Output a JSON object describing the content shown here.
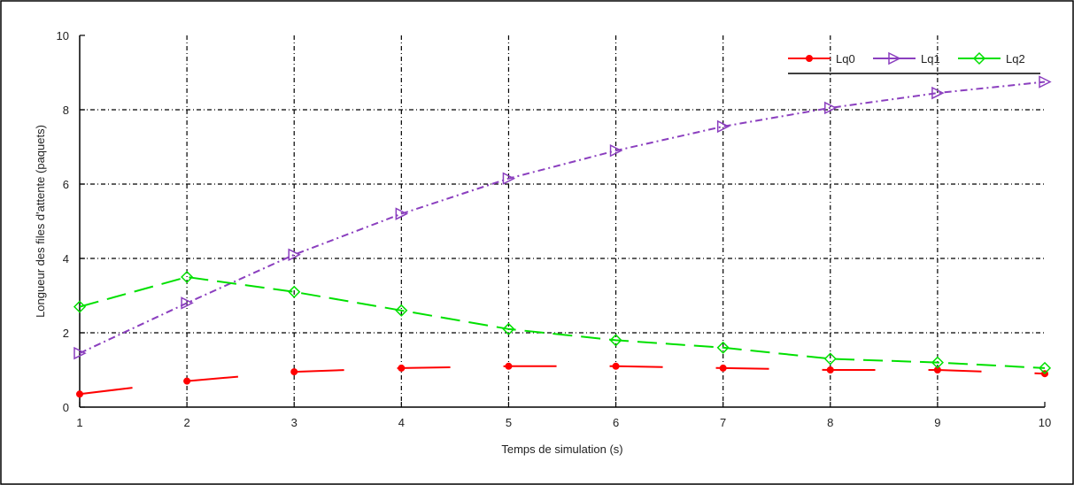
{
  "chart_data": {
    "type": "line",
    "xlabel": "Temps de simulation (s)",
    "ylabel": "Longueur des files d'attente (paquets)",
    "x": [
      1,
      2,
      3,
      4,
      5,
      6,
      7,
      8,
      9,
      10
    ],
    "xlim": [
      1,
      10
    ],
    "ylim": [
      0,
      10
    ],
    "xticks": [
      1,
      2,
      3,
      4,
      5,
      6,
      7,
      8,
      9,
      10
    ],
    "yticks": [
      0,
      2,
      4,
      6,
      8,
      10
    ],
    "grid": true,
    "legend_position": "top-right",
    "series": [
      {
        "name": "Lq0",
        "color": "#ff0000",
        "marker": "dot",
        "dash": "long",
        "values": [
          0.35,
          0.7,
          0.95,
          1.05,
          1.1,
          1.1,
          1.05,
          1.0,
          1.0,
          0.9
        ]
      },
      {
        "name": "Lq1",
        "color": "#8b3fbf",
        "marker": "triangle",
        "dash": "dashdot",
        "values": [
          1.45,
          2.8,
          4.1,
          5.2,
          6.15,
          6.9,
          7.55,
          8.05,
          8.45,
          8.75
        ]
      },
      {
        "name": "Lq2",
        "color": "#00e000",
        "marker": "diamond",
        "dash": "dash",
        "values": [
          2.7,
          3.5,
          3.1,
          2.6,
          2.1,
          1.8,
          1.6,
          1.3,
          1.2,
          1.05
        ]
      }
    ]
  }
}
